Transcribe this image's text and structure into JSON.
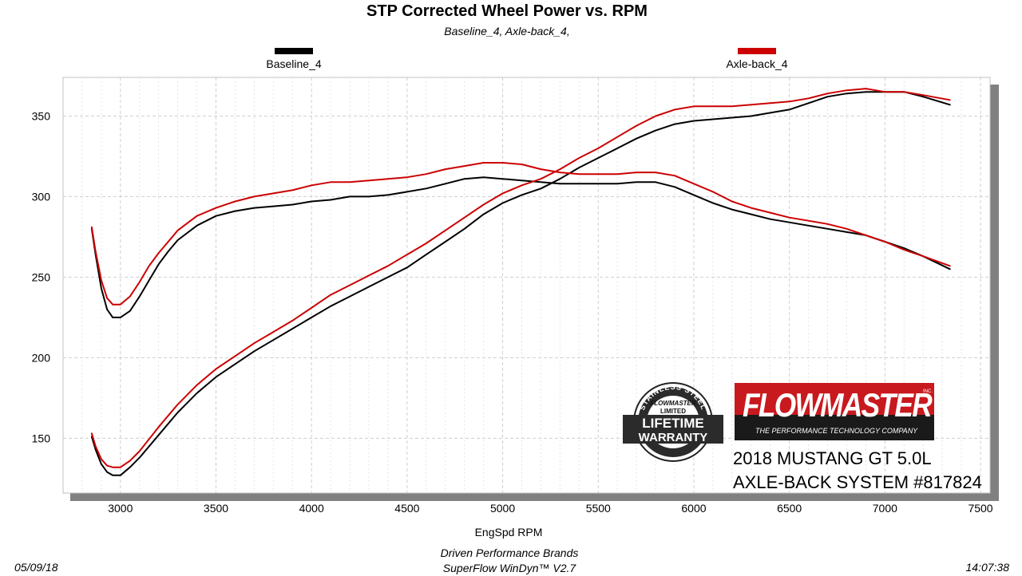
{
  "chart_data": {
    "type": "line",
    "title": "STP Corrected Wheel Power vs. RPM",
    "subtitle": "Baseline_4, Axle-back_4,",
    "xlabel": "EngSpd  RPM",
    "ylabel": "",
    "xlim": [
      2700,
      7550
    ],
    "ylim": [
      116,
      374
    ],
    "xticks": [
      3000,
      3500,
      4000,
      4500,
      5000,
      5500,
      6000,
      6500,
      7000,
      7500
    ],
    "yticks": [
      150,
      200,
      250,
      300,
      350
    ],
    "grid": true,
    "legend_position": "top",
    "series": [
      {
        "name": "Baseline_4",
        "color": "#000000",
        "curves": [
          {
            "x": [
              2850,
              2870,
              2900,
              2930,
              2960,
              3000,
              3050,
              3100,
              3150,
              3200,
              3250,
              3300,
              3400,
              3500,
              3600,
              3700,
              3800,
              3900,
              4000,
              4100,
              4200,
              4300,
              4400,
              4500,
              4600,
              4700,
              4800,
              4900,
              5000,
              5100,
              5200,
              5300,
              5400,
              5500,
              5600,
              5700,
              5800,
              5900,
              6000,
              6100,
              6200,
              6300,
              6400,
              6500,
              6600,
              6700,
              6800,
              6900,
              7000,
              7100,
              7200,
              7340
            ],
            "y": [
              280,
              264,
              243,
              230,
              225,
              225,
              229,
              238,
              248,
              258,
              266,
              273,
              282,
              288,
              291,
              293,
              294,
              295,
              297,
              298,
              300,
              300,
              301,
              303,
              305,
              308,
              311,
              312,
              311,
              310,
              309,
              308,
              308,
              308,
              308,
              309,
              309,
              306,
              301,
              296,
              292,
              289,
              286,
              284,
              282,
              280,
              278,
              276,
              272,
              268,
              263,
              255
            ]
          },
          {
            "x": [
              2850,
              2870,
              2900,
              2930,
              2960,
              3000,
              3050,
              3100,
              3200,
              3300,
              3400,
              3500,
              3600,
              3700,
              3800,
              3900,
              4000,
              4100,
              4200,
              4300,
              4400,
              4500,
              4600,
              4700,
              4800,
              4900,
              5000,
              5100,
              5200,
              5300,
              5400,
              5500,
              5600,
              5700,
              5800,
              5900,
              6000,
              6100,
              6200,
              6300,
              6400,
              6500,
              6600,
              6700,
              6800,
              6900,
              7000,
              7100,
              7200,
              7340
            ],
            "y": [
              151,
              143,
              134,
              129,
              127,
              127,
              132,
              138,
              152,
              166,
              178,
              188,
              196,
              204,
              211,
              218,
              225,
              232,
              238,
              244,
              250,
              256,
              264,
              272,
              280,
              289,
              296,
              301,
              305,
              311,
              318,
              324,
              330,
              336,
              341,
              345,
              347,
              348,
              349,
              350,
              352,
              354,
              358,
              362,
              364,
              365,
              365,
              365,
              362,
              357
            ]
          }
        ]
      },
      {
        "name": "Axle-back_4",
        "color": "#cc0000",
        "curves": [
          {
            "x": [
              2850,
              2870,
              2900,
              2930,
              2960,
              3000,
              3050,
              3100,
              3150,
              3200,
              3250,
              3300,
              3400,
              3500,
              3600,
              3700,
              3800,
              3900,
              4000,
              4100,
              4200,
              4300,
              4400,
              4500,
              4600,
              4700,
              4800,
              4900,
              5000,
              5100,
              5200,
              5300,
              5400,
              5500,
              5600,
              5700,
              5800,
              5900,
              6000,
              6100,
              6200,
              6300,
              6400,
              6500,
              6600,
              6700,
              6800,
              6900,
              7000,
              7100,
              7200,
              7340
            ],
            "y": [
              281,
              266,
              248,
              237,
              233,
              233,
              238,
              247,
              257,
              265,
              272,
              279,
              288,
              293,
              297,
              300,
              302,
              304,
              307,
              309,
              309,
              310,
              311,
              312,
              314,
              317,
              319,
              321,
              321,
              320,
              317,
              315,
              314,
              314,
              314,
              315,
              315,
              313,
              308,
              303,
              297,
              293,
              290,
              287,
              285,
              283,
              280,
              276,
              272,
              267,
              263,
              257
            ]
          },
          {
            "x": [
              2850,
              2870,
              2900,
              2930,
              2960,
              3000,
              3050,
              3100,
              3200,
              3300,
              3400,
              3500,
              3600,
              3700,
              3800,
              3900,
              4000,
              4100,
              4200,
              4300,
              4400,
              4500,
              4600,
              4700,
              4800,
              4900,
              5000,
              5100,
              5200,
              5300,
              5400,
              5500,
              5600,
              5700,
              5800,
              5900,
              6000,
              6100,
              6200,
              6300,
              6400,
              6500,
              6600,
              6700,
              6800,
              6900,
              7000,
              7100,
              7200,
              7340
            ],
            "y": [
              153,
              145,
              137,
              133,
              132,
              132,
              136,
              142,
              157,
              171,
              183,
              193,
              201,
              209,
              216,
              223,
              231,
              239,
              245,
              251,
              257,
              264,
              271,
              279,
              287,
              295,
              302,
              307,
              311,
              317,
              324,
              330,
              337,
              344,
              350,
              354,
              356,
              356,
              356,
              357,
              358,
              359,
              361,
              364,
              366,
              367,
              365,
              365,
              363,
              360
            ]
          }
        ]
      }
    ]
  },
  "footer": {
    "left": "05/09/18",
    "center_line1": "Driven Performance Brands",
    "center_line2": "SuperFlow WinDyn™  V2.7",
    "right": "14:07:38"
  },
  "branding": {
    "seal_text_top": "STAINLESS STEEL",
    "seal_brand": "FLOWMASTER",
    "seal_limited": "LIMITED",
    "seal_line1": "LIFETIME",
    "seal_line2": "WARRANTY",
    "logo_name": "FLOWMASTER",
    "logo_inc": "INC.",
    "logo_tagline": "THE PERFORMANCE TECHNOLOGY COMPANY",
    "caption_line1": "2018 MUSTANG GT 5.0L",
    "caption_line2": "AXLE-BACK SYSTEM #817824"
  }
}
